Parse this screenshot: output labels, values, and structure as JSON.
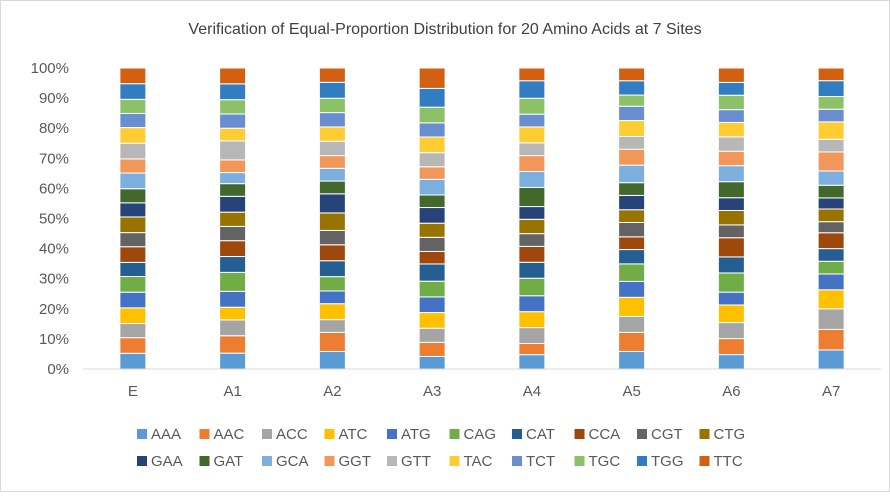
{
  "chart_data": {
    "type": "bar",
    "stacking": "percent",
    "title": "Verification of Equal-Proportion Distribution for 20 Amino Acids at 7 Sites",
    "xlabel": "",
    "ylabel": "",
    "ylim": [
      0,
      100
    ],
    "y_ticks": [
      "0%",
      "10%",
      "20%",
      "30%",
      "40%",
      "50%",
      "60%",
      "70%",
      "80%",
      "90%",
      "100%"
    ],
    "grid": false,
    "legend_position": "bottom",
    "categories": [
      "E",
      "A1",
      "A2",
      "A3",
      "A4",
      "A5",
      "A6",
      "A7"
    ],
    "series": [
      {
        "name": "AAA",
        "color": "#5b9bd5",
        "values": [
          5.0,
          5.0,
          5.5,
          4.0,
          4.5,
          5.5,
          4.5,
          6.0
        ]
      },
      {
        "name": "AAC",
        "color": "#ed7d31",
        "values": [
          5.0,
          5.5,
          6.0,
          4.5,
          3.5,
          6.0,
          5.0,
          6.5
        ]
      },
      {
        "name": "ACC",
        "color": "#a5a5a5",
        "values": [
          4.5,
          5.0,
          4.0,
          4.5,
          5.0,
          5.0,
          5.0,
          6.5
        ]
      },
      {
        "name": "ATC",
        "color": "#ffc000",
        "values": [
          5.0,
          4.0,
          5.0,
          5.0,
          5.0,
          6.0,
          5.5,
          6.0
        ]
      },
      {
        "name": "ATG",
        "color": "#4472c4",
        "values": [
          5.0,
          5.0,
          4.0,
          5.0,
          5.0,
          5.0,
          4.0,
          5.0
        ]
      },
      {
        "name": "CAG",
        "color": "#70ad47",
        "values": [
          5.0,
          6.0,
          4.5,
          5.0,
          5.5,
          5.5,
          6.0,
          4.0
        ]
      },
      {
        "name": "CAT",
        "color": "#255e91",
        "values": [
          4.5,
          5.0,
          5.0,
          5.5,
          5.0,
          4.5,
          5.0,
          4.0
        ]
      },
      {
        "name": "CCA",
        "color": "#9e480e",
        "values": [
          5.0,
          5.0,
          5.0,
          4.0,
          5.0,
          4.0,
          6.0,
          5.0
        ]
      },
      {
        "name": "CGT",
        "color": "#636363",
        "values": [
          4.5,
          4.5,
          4.5,
          4.5,
          4.0,
          4.5,
          4.0,
          3.5
        ]
      },
      {
        "name": "CTG",
        "color": "#997300",
        "values": [
          5.0,
          4.5,
          5.5,
          4.5,
          4.5,
          4.0,
          4.5,
          4.0
        ]
      },
      {
        "name": "GAA",
        "color": "#264478",
        "values": [
          4.5,
          5.0,
          6.0,
          5.0,
          4.0,
          4.5,
          4.0,
          3.5
        ]
      },
      {
        "name": "GAT",
        "color": "#43682b",
        "values": [
          4.5,
          4.0,
          4.0,
          4.0,
          6.0,
          4.0,
          5.0,
          4.0
        ]
      },
      {
        "name": "GCA",
        "color": "#7cafdd",
        "values": [
          5.0,
          3.5,
          4.0,
          5.0,
          5.0,
          5.5,
          5.0,
          4.5
        ]
      },
      {
        "name": "GGT",
        "color": "#f1975a",
        "values": [
          4.5,
          4.0,
          4.0,
          4.0,
          5.0,
          5.0,
          4.5,
          6.0
        ]
      },
      {
        "name": "GTT",
        "color": "#b7b7b7",
        "values": [
          5.0,
          6.0,
          4.5,
          4.5,
          4.0,
          4.0,
          4.5,
          4.0
        ]
      },
      {
        "name": "TAC",
        "color": "#ffcd33",
        "values": [
          5.0,
          4.0,
          4.5,
          5.0,
          5.0,
          5.0,
          4.5,
          5.5
        ]
      },
      {
        "name": "TCT",
        "color": "#698ed0",
        "values": [
          4.5,
          4.5,
          4.5,
          4.5,
          4.0,
          4.5,
          4.0,
          4.0
        ]
      },
      {
        "name": "TGC",
        "color": "#8cc168",
        "values": [
          4.5,
          4.5,
          4.5,
          5.0,
          5.0,
          3.5,
          4.5,
          4.0
        ]
      },
      {
        "name": "TGG",
        "color": "#327dc2",
        "values": [
          5.0,
          5.0,
          5.0,
          6.0,
          5.5,
          4.5,
          4.0,
          5.0
        ]
      },
      {
        "name": "TTC",
        "color": "#d26012",
        "values": [
          5.0,
          5.0,
          4.5,
          6.5,
          4.0,
          4.0,
          4.5,
          4.0
        ]
      }
    ]
  }
}
